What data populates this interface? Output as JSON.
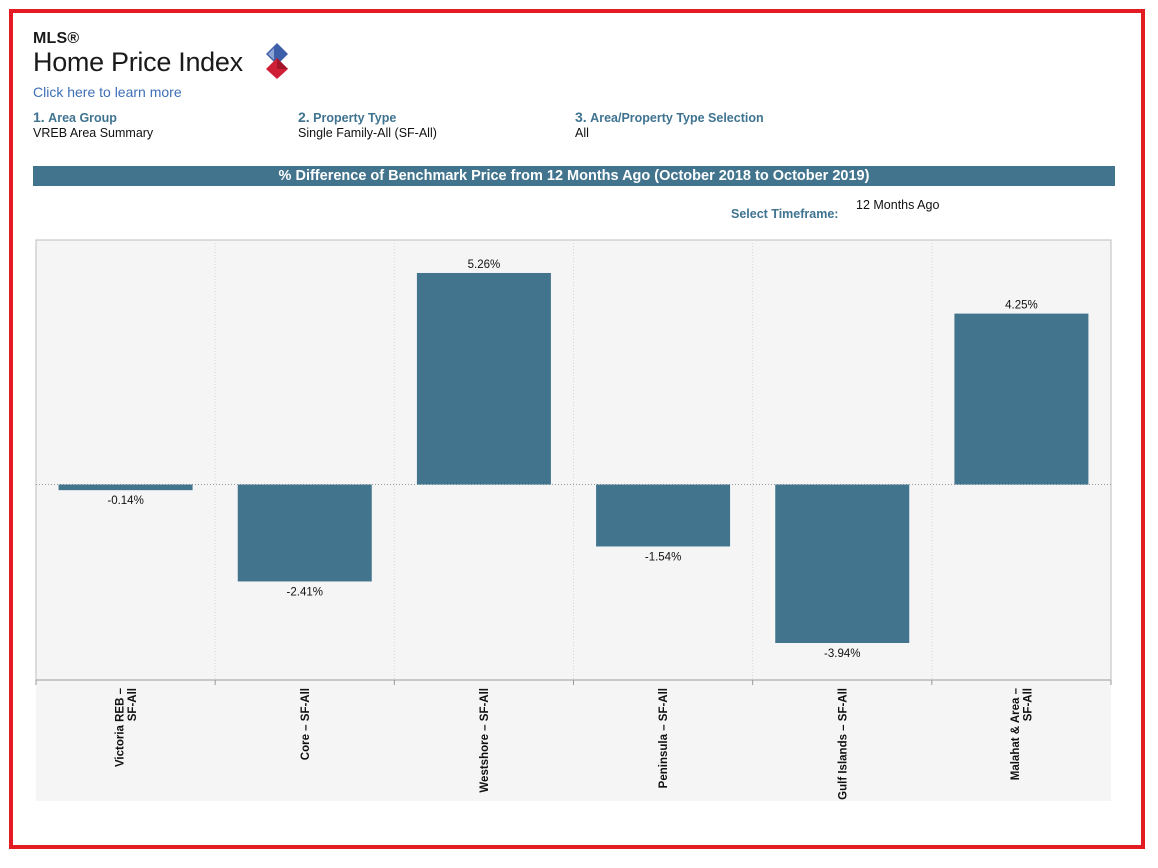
{
  "logo": {
    "superscript": "MLS®",
    "title": "Home Price Index"
  },
  "learn_link": "Click here to learn more",
  "selectors": [
    {
      "number": "1.",
      "label": "Area Group",
      "value": "VREB Area Summary"
    },
    {
      "number": "2.",
      "label": "Property Type",
      "value": "Single Family-All (SF-All)"
    },
    {
      "number": "3.",
      "label": "Area/Property Type Selection",
      "value": "All"
    }
  ],
  "timeframe": {
    "label": "Select Timeframe:",
    "value": "12 Months Ago"
  },
  "colors": {
    "bar": "#42748e",
    "frame_border": "#e31b23",
    "accent_text": "#3f7390",
    "link": "#3e6fb7",
    "logo_red": "#cf1f36",
    "logo_blue": "#3d5fa9"
  },
  "chart_data": {
    "type": "bar",
    "title": "% Difference of Benchmark Price from 12 Months Ago (October 2018 to October 2019)",
    "categories": [
      [
        "Victoria REB –",
        "SF-All"
      ],
      [
        "Core – SF-All"
      ],
      [
        "Westshore – SF-All"
      ],
      [
        "Peninsula – SF-All"
      ],
      [
        "Gulf Islands – SF-All"
      ],
      [
        "Malahat & Area –",
        "SF-All"
      ]
    ],
    "values": [
      -0.14,
      -2.41,
      5.26,
      -1.54,
      -3.94,
      4.25
    ],
    "data_labels": [
      "-0.14%",
      "-2.41%",
      "5.26%",
      "-1.54%",
      "-3.94%",
      "4.25%"
    ],
    "ylim": [
      -4.86,
      6.08
    ],
    "zero_line": true,
    "gridlines": "vertical-dotted"
  }
}
